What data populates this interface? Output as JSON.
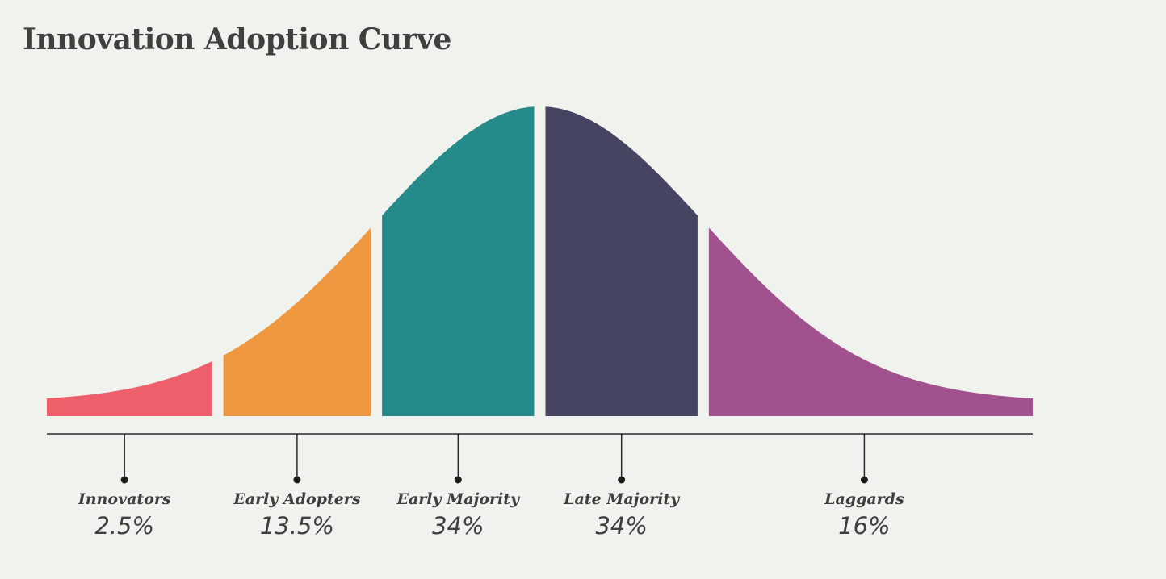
{
  "chart_data": {
    "type": "area",
    "title": "Innovation Adoption Curve",
    "xlabel": "",
    "ylabel": "",
    "grid": false,
    "legend": "none",
    "categories": [
      "Innovators",
      "Early Adopters",
      "Early Majority",
      "Late Majority",
      "Laggards"
    ],
    "series": [
      {
        "values": [
          2.5,
          13.5,
          34,
          34,
          16
        ],
        "labels": [
          "2.5%",
          "13.5%",
          "34%",
          "34%",
          "16%"
        ]
      }
    ],
    "colors": [
      "#ec5f6b",
      "#f09840",
      "#248b8a",
      "#454562",
      "#a1528e"
    ]
  }
}
